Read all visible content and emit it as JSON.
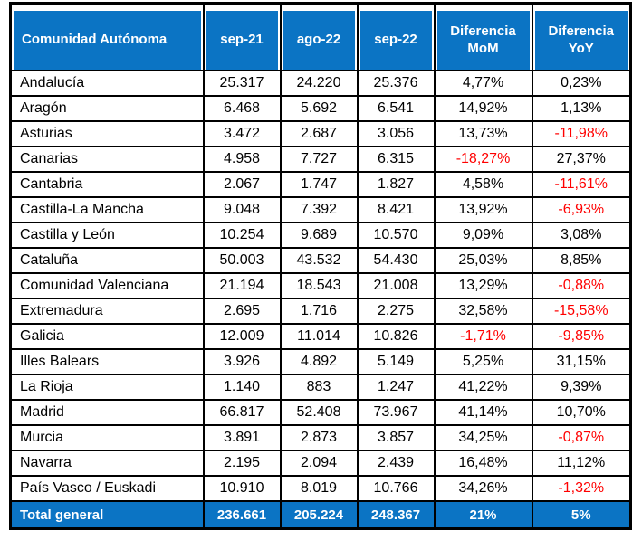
{
  "chart_data": {
    "type": "table",
    "columns": [
      "Comunidad Autónoma",
      "sep-21",
      "ago-22",
      "sep-22",
      "Diferencia MoM",
      "Diferencia YoY"
    ],
    "rows": [
      {
        "name": "Andalucía",
        "sep21": "25.317",
        "ago22": "24.220",
        "sep22": "25.376",
        "mom": "4,77%",
        "yoy": "0,23%"
      },
      {
        "name": "Aragón",
        "sep21": "6.468",
        "ago22": "5.692",
        "sep22": "6.541",
        "mom": "14,92%",
        "yoy": "1,13%"
      },
      {
        "name": "Asturias",
        "sep21": "3.472",
        "ago22": "2.687",
        "sep22": "3.056",
        "mom": "13,73%",
        "yoy": "-11,98%"
      },
      {
        "name": "Canarias",
        "sep21": "4.958",
        "ago22": "7.727",
        "sep22": "6.315",
        "mom": "-18,27%",
        "yoy": "27,37%"
      },
      {
        "name": "Cantabria",
        "sep21": "2.067",
        "ago22": "1.747",
        "sep22": "1.827",
        "mom": "4,58%",
        "yoy": "-11,61%"
      },
      {
        "name": "Castilla-La Mancha",
        "sep21": "9.048",
        "ago22": "7.392",
        "sep22": "8.421",
        "mom": "13,92%",
        "yoy": "-6,93%"
      },
      {
        "name": "Castilla y León",
        "sep21": "10.254",
        "ago22": "9.689",
        "sep22": "10.570",
        "mom": "9,09%",
        "yoy": "3,08%"
      },
      {
        "name": "Cataluña",
        "sep21": "50.003",
        "ago22": "43.532",
        "sep22": "54.430",
        "mom": "25,03%",
        "yoy": "8,85%"
      },
      {
        "name": "Comunidad Valenciana",
        "sep21": "21.194",
        "ago22": "18.543",
        "sep22": "21.008",
        "mom": "13,29%",
        "yoy": "-0,88%"
      },
      {
        "name": "Extremadura",
        "sep21": "2.695",
        "ago22": "1.716",
        "sep22": "2.275",
        "mom": "32,58%",
        "yoy": "-15,58%"
      },
      {
        "name": "Galicia",
        "sep21": "12.009",
        "ago22": "11.014",
        "sep22": "10.826",
        "mom": "-1,71%",
        "yoy": "-9,85%"
      },
      {
        "name": "Illes Balears",
        "sep21": "3.926",
        "ago22": "4.892",
        "sep22": "5.149",
        "mom": "5,25%",
        "yoy": "31,15%"
      },
      {
        "name": "La Rioja",
        "sep21": "1.140",
        "ago22": "883",
        "sep22": "1.247",
        "mom": "41,22%",
        "yoy": "9,39%"
      },
      {
        "name": "Madrid",
        "sep21": "66.817",
        "ago22": "52.408",
        "sep22": "73.967",
        "mom": "41,14%",
        "yoy": "10,70%"
      },
      {
        "name": "Murcia",
        "sep21": "3.891",
        "ago22": "2.873",
        "sep22": "3.857",
        "mom": "34,25%",
        "yoy": "-0,87%"
      },
      {
        "name": "Navarra",
        "sep21": "2.195",
        "ago22": "2.094",
        "sep22": "2.439",
        "mom": "16,48%",
        "yoy": "11,12%"
      },
      {
        "name": "País Vasco / Euskadi",
        "sep21": "10.910",
        "ago22": "8.019",
        "sep22": "10.766",
        "mom": "34,26%",
        "yoy": "-1,32%"
      }
    ],
    "total": {
      "name": "Total general",
      "sep21": "236.661",
      "ago22": "205.224",
      "sep22": "248.367",
      "mom": "21%",
      "yoy": "5%"
    }
  },
  "colors": {
    "header_bg": "#0b74c4",
    "header_text": "#ffffff",
    "body_text": "#000000",
    "negative_text": "#ff0000",
    "total_bg": "#0b74c4",
    "total_text": "#ffffff",
    "border": "#000000"
  }
}
